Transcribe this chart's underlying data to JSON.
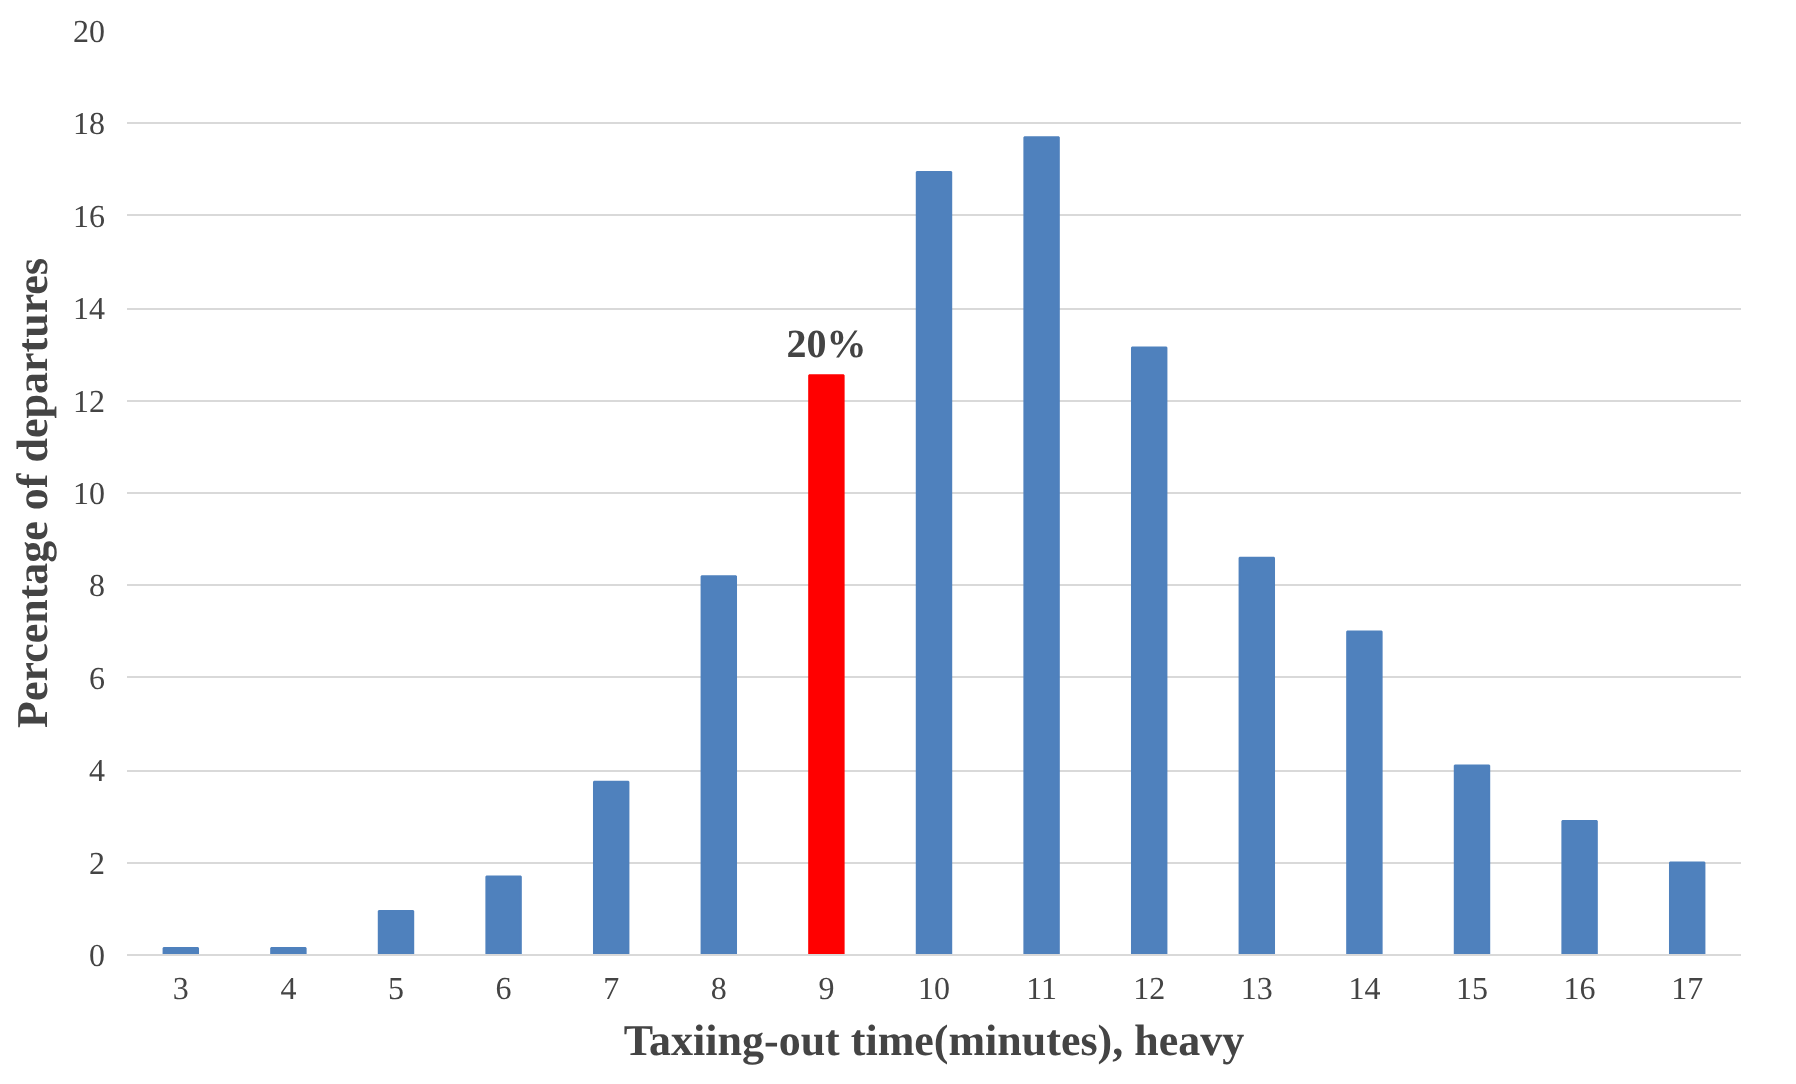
{
  "chart_data": {
    "type": "bar",
    "xlabel": "Taxiing-out time(minutes), heavy",
    "ylabel": "Percentage of departures",
    "categories": [
      "3",
      "4",
      "5",
      "6",
      "7",
      "8",
      "9",
      "10",
      "11",
      "12",
      "13",
      "14",
      "15",
      "16",
      "17"
    ],
    "values": [
      0.15,
      0.15,
      0.95,
      1.7,
      3.75,
      8.2,
      12.55,
      16.95,
      17.7,
      13.15,
      8.6,
      7.0,
      4.1,
      2.9,
      2.0
    ],
    "colors": [
      "#4f81bd",
      "#4f81bd",
      "#4f81bd",
      "#4f81bd",
      "#4f81bd",
      "#4f81bd",
      "#ff0000",
      "#4f81bd",
      "#4f81bd",
      "#4f81bd",
      "#4f81bd",
      "#4f81bd",
      "#4f81bd",
      "#4f81bd",
      "#4f81bd"
    ],
    "ylim": [
      0,
      20
    ],
    "yticks": [
      0,
      2,
      4,
      6,
      8,
      10,
      12,
      14,
      16,
      18,
      20
    ],
    "grid": "y",
    "annotations": [
      {
        "text": "20%",
        "x": "9",
        "y": 12.55
      }
    ]
  }
}
